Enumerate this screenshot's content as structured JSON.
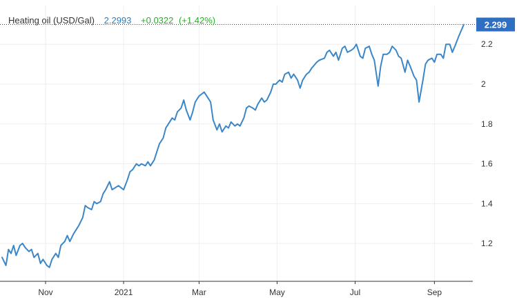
{
  "header": {
    "instrument": "Heating oil (USD/Gal)",
    "price": "2.2993",
    "change": "+0.0322",
    "change_pct": "(+1.42%)"
  },
  "last_price_label": "2.299",
  "colors": {
    "line": "#3a86c8",
    "last_price_badge": "#2f6fc2",
    "price_text": "#2a7fc0",
    "change_text": "#22b022",
    "grid": "#eeeeee",
    "axis_text": "#333333",
    "reference_line": "#2b2bd6"
  },
  "chart_data": {
    "type": "line",
    "title": "",
    "xlabel": "",
    "ylabel": "",
    "x_range": [
      "2020-09-28",
      "2021-09-24"
    ],
    "ylim": [
      1.01,
      2.36
    ],
    "y_ticks": [
      1.2,
      1.4,
      1.6,
      1.8,
      2.0,
      2.2
    ],
    "y_tick_labels": [
      "1.2",
      "1.4",
      "1.6",
      "1.8",
      "2",
      "2.2"
    ],
    "x_ticks": [
      {
        "date": "2020-11-01",
        "label": "Nov"
      },
      {
        "date": "2021-01-01",
        "label": "2021"
      },
      {
        "date": "2021-03-01",
        "label": "Mar"
      },
      {
        "date": "2021-05-01",
        "label": "May"
      },
      {
        "date": "2021-07-01",
        "label": "Jul"
      },
      {
        "date": "2021-09-01",
        "label": "Sep"
      }
    ],
    "grid": true,
    "last_value": 2.2993,
    "series": [
      {
        "points": [
          [
            "2020-09-28",
            1.13
          ],
          [
            "2020-10-01",
            1.09
          ],
          [
            "2020-10-03",
            1.17
          ],
          [
            "2020-10-05",
            1.15
          ],
          [
            "2020-10-07",
            1.19
          ],
          [
            "2020-10-09",
            1.14
          ],
          [
            "2020-10-12",
            1.19
          ],
          [
            "2020-10-14",
            1.2
          ],
          [
            "2020-10-16",
            1.18
          ],
          [
            "2020-10-19",
            1.16
          ],
          [
            "2020-10-21",
            1.17
          ],
          [
            "2020-10-23",
            1.13
          ],
          [
            "2020-10-26",
            1.15
          ],
          [
            "2020-10-28",
            1.1
          ],
          [
            "2020-10-30",
            1.12
          ],
          [
            "2020-11-02",
            1.09
          ],
          [
            "2020-11-04",
            1.08
          ],
          [
            "2020-11-06",
            1.12
          ],
          [
            "2020-11-09",
            1.15
          ],
          [
            "2020-11-11",
            1.13
          ],
          [
            "2020-11-13",
            1.19
          ],
          [
            "2020-11-16",
            1.21
          ],
          [
            "2020-11-18",
            1.24
          ],
          [
            "2020-11-20",
            1.21
          ],
          [
            "2020-11-23",
            1.25
          ],
          [
            "2020-11-25",
            1.27
          ],
          [
            "2020-11-27",
            1.29
          ],
          [
            "2020-11-30",
            1.33
          ],
          [
            "2020-12-02",
            1.39
          ],
          [
            "2020-12-04",
            1.38
          ],
          [
            "2020-12-07",
            1.37
          ],
          [
            "2020-12-09",
            1.41
          ],
          [
            "2020-12-11",
            1.4
          ],
          [
            "2020-12-14",
            1.41
          ],
          [
            "2020-12-16",
            1.45
          ],
          [
            "2020-12-18",
            1.47
          ],
          [
            "2020-12-21",
            1.51
          ],
          [
            "2020-12-23",
            1.47
          ],
          [
            "2020-12-28",
            1.49
          ],
          [
            "2020-12-30",
            1.48
          ],
          [
            "2021-01-01",
            1.47
          ],
          [
            "2021-01-04",
            1.52
          ],
          [
            "2021-01-06",
            1.56
          ],
          [
            "2021-01-08",
            1.57
          ],
          [
            "2021-01-11",
            1.6
          ],
          [
            "2021-01-13",
            1.59
          ],
          [
            "2021-01-15",
            1.6
          ],
          [
            "2021-01-18",
            1.59
          ],
          [
            "2021-01-20",
            1.61
          ],
          [
            "2021-01-22",
            1.59
          ],
          [
            "2021-01-25",
            1.62
          ],
          [
            "2021-01-27",
            1.66
          ],
          [
            "2021-01-29",
            1.7
          ],
          [
            "2021-02-01",
            1.73
          ],
          [
            "2021-02-03",
            1.78
          ],
          [
            "2021-02-05",
            1.8
          ],
          [
            "2021-02-08",
            1.83
          ],
          [
            "2021-02-10",
            1.82
          ],
          [
            "2021-02-12",
            1.86
          ],
          [
            "2021-02-15",
            1.88
          ],
          [
            "2021-02-17",
            1.92
          ],
          [
            "2021-02-19",
            1.87
          ],
          [
            "2021-02-22",
            1.82
          ],
          [
            "2021-02-24",
            1.86
          ],
          [
            "2021-02-26",
            1.91
          ],
          [
            "2021-03-01",
            1.94
          ],
          [
            "2021-03-03",
            1.95
          ],
          [
            "2021-03-05",
            1.96
          ],
          [
            "2021-03-08",
            1.93
          ],
          [
            "2021-03-10",
            1.91
          ],
          [
            "2021-03-12",
            1.82
          ],
          [
            "2021-03-15",
            1.77
          ],
          [
            "2021-03-17",
            1.8
          ],
          [
            "2021-03-19",
            1.76
          ],
          [
            "2021-03-22",
            1.79
          ],
          [
            "2021-03-24",
            1.78
          ],
          [
            "2021-03-26",
            1.81
          ],
          [
            "2021-03-29",
            1.79
          ],
          [
            "2021-03-31",
            1.8
          ],
          [
            "2021-04-02",
            1.79
          ],
          [
            "2021-04-05",
            1.83
          ],
          [
            "2021-04-07",
            1.88
          ],
          [
            "2021-04-09",
            1.89
          ],
          [
            "2021-04-12",
            1.88
          ],
          [
            "2021-04-14",
            1.87
          ],
          [
            "2021-04-16",
            1.9
          ],
          [
            "2021-04-19",
            1.93
          ],
          [
            "2021-04-21",
            1.91
          ],
          [
            "2021-04-23",
            1.92
          ],
          [
            "2021-04-26",
            1.96
          ],
          [
            "2021-04-28",
            2.0
          ],
          [
            "2021-04-30",
            2.0
          ],
          [
            "2021-05-03",
            2.02
          ],
          [
            "2021-05-05",
            2.01
          ],
          [
            "2021-05-07",
            2.05
          ],
          [
            "2021-05-10",
            2.06
          ],
          [
            "2021-05-12",
            2.03
          ],
          [
            "2021-05-14",
            2.05
          ],
          [
            "2021-05-17",
            2.02
          ],
          [
            "2021-05-19",
            1.98
          ],
          [
            "2021-05-21",
            2.02
          ],
          [
            "2021-05-24",
            2.05
          ],
          [
            "2021-05-26",
            2.06
          ],
          [
            "2021-05-28",
            2.08
          ],
          [
            "2021-06-01",
            2.11
          ],
          [
            "2021-06-03",
            2.12
          ],
          [
            "2021-06-07",
            2.13
          ],
          [
            "2021-06-09",
            2.16
          ],
          [
            "2021-06-11",
            2.17
          ],
          [
            "2021-06-14",
            2.14
          ],
          [
            "2021-06-16",
            2.16
          ],
          [
            "2021-06-18",
            2.12
          ],
          [
            "2021-06-21",
            2.18
          ],
          [
            "2021-06-23",
            2.19
          ],
          [
            "2021-06-25",
            2.16
          ],
          [
            "2021-06-28",
            2.17
          ],
          [
            "2021-06-30",
            2.18
          ],
          [
            "2021-07-02",
            2.2
          ],
          [
            "2021-07-05",
            2.14
          ],
          [
            "2021-07-07",
            2.13
          ],
          [
            "2021-07-09",
            2.18
          ],
          [
            "2021-07-12",
            2.19
          ],
          [
            "2021-07-14",
            2.15
          ],
          [
            "2021-07-16",
            2.12
          ],
          [
            "2021-07-19",
            1.99
          ],
          [
            "2021-07-21",
            2.09
          ],
          [
            "2021-07-23",
            2.15
          ],
          [
            "2021-07-26",
            2.15
          ],
          [
            "2021-07-28",
            2.16
          ],
          [
            "2021-07-30",
            2.19
          ],
          [
            "2021-08-02",
            2.17
          ],
          [
            "2021-08-04",
            2.14
          ],
          [
            "2021-08-06",
            2.13
          ],
          [
            "2021-08-09",
            2.06
          ],
          [
            "2021-08-11",
            2.12
          ],
          [
            "2021-08-13",
            2.09
          ],
          [
            "2021-08-16",
            2.04
          ],
          [
            "2021-08-18",
            2.02
          ],
          [
            "2021-08-20",
            1.91
          ],
          [
            "2021-08-23",
            2.02
          ],
          [
            "2021-08-25",
            2.1
          ],
          [
            "2021-08-27",
            2.12
          ],
          [
            "2021-08-30",
            2.13
          ],
          [
            "2021-09-01",
            2.11
          ],
          [
            "2021-09-03",
            2.15
          ],
          [
            "2021-09-06",
            2.15
          ],
          [
            "2021-09-08",
            2.13
          ],
          [
            "2021-09-10",
            2.2
          ],
          [
            "2021-09-13",
            2.2
          ],
          [
            "2021-09-15",
            2.16
          ],
          [
            "2021-09-17",
            2.19
          ],
          [
            "2021-09-20",
            2.24
          ],
          [
            "2021-09-22",
            2.27
          ],
          [
            "2021-09-24",
            2.2993
          ]
        ]
      }
    ]
  }
}
